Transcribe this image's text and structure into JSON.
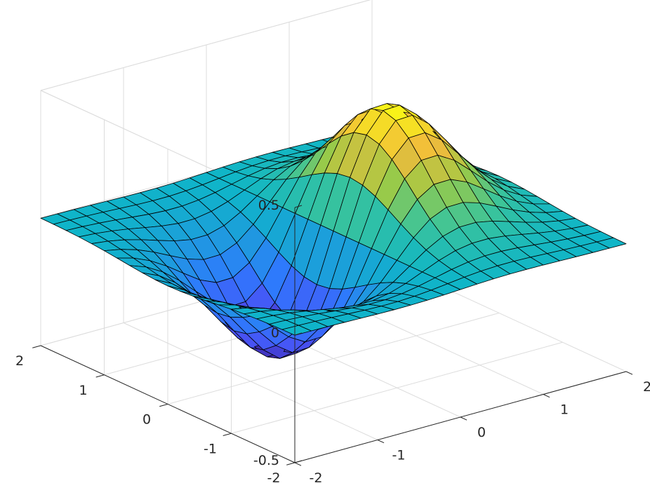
{
  "chart_data": {
    "type": "surface",
    "function": "z = x * exp(-x^2 - y^2)",
    "x_range": [
      -2,
      2
    ],
    "y_range": [
      -2,
      2
    ],
    "z_range": [
      -0.5,
      0.5
    ],
    "grid_points": 21,
    "x_ticks": [
      {
        "value": -2,
        "label": "-2"
      },
      {
        "value": -1,
        "label": "-1"
      },
      {
        "value": 0,
        "label": "0"
      },
      {
        "value": 1,
        "label": "1"
      },
      {
        "value": 2,
        "label": "2"
      }
    ],
    "y_ticks": [
      {
        "value": -2,
        "label": "-2"
      },
      {
        "value": -1,
        "label": "-1"
      },
      {
        "value": 0,
        "label": "0"
      },
      {
        "value": 1,
        "label": "1"
      },
      {
        "value": 2,
        "label": "2"
      }
    ],
    "z_ticks": [
      {
        "value": -0.5,
        "label": "-0.5"
      },
      {
        "value": 0,
        "label": "0"
      },
      {
        "value": 0.5,
        "label": "0.5"
      }
    ],
    "colormap": "parula",
    "colormap_stops": [
      "#3e26a8",
      "#4853f5",
      "#2f79fd",
      "#1e9cdd",
      "#0fb5c8",
      "#3bc49a",
      "#9cca46",
      "#f1bb3c",
      "#f9f815"
    ],
    "edge_color": "#000000",
    "grid": true
  }
}
